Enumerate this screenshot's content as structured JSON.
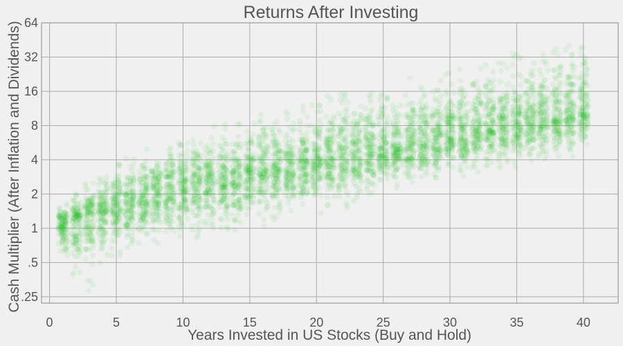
{
  "chart_data": {
    "type": "scatter",
    "title": "Returns After Investing",
    "xlabel": "Years Invested in US Stocks (Buy and Hold)",
    "ylabel": "Cash Multiplier (After Inflation and Dividends)",
    "xlim": [
      -0.6,
      42.6
    ],
    "ylim": [
      0.22,
      64
    ],
    "y_scale": "log2",
    "grid": true,
    "x_ticks": [
      0,
      5,
      10,
      15,
      20,
      25,
      30,
      35,
      40
    ],
    "x_tick_labels": [
      "0",
      "5",
      "10",
      "15",
      "20",
      "25",
      "30",
      "35",
      "40"
    ],
    "y_ticks": [
      0.25,
      0.5,
      1,
      2,
      4,
      8,
      16,
      32,
      64
    ],
    "y_tick_labels": [
      ".25",
      ".5",
      "1",
      "2",
      "4",
      "8",
      "16",
      "32",
      "64"
    ],
    "point_color": "#22c42a",
    "point_opacity": 0.08,
    "series": [
      {
        "x": [
          1,
          2,
          3,
          4,
          5,
          6,
          7,
          8,
          9,
          10,
          11,
          12,
          13,
          14,
          15,
          16,
          17,
          18,
          19,
          20,
          21,
          22,
          23,
          24,
          25,
          26,
          27,
          28,
          29,
          30,
          31,
          32,
          33,
          34,
          35,
          36,
          37,
          38,
          39,
          40
        ],
        "y_median": [
          1.1,
          1.2,
          1.3,
          1.4,
          1.5,
          1.6,
          1.75,
          1.9,
          2.0,
          2.2,
          2.3,
          2.5,
          2.6,
          2.8,
          3.0,
          3.1,
          3.3,
          3.5,
          3.6,
          3.8,
          4.0,
          4.2,
          4.4,
          4.6,
          4.8,
          5.0,
          5.3,
          5.6,
          5.9,
          6.3,
          6.6,
          7.0,
          7.4,
          7.8,
          8.2,
          8.6,
          9.0,
          9.5,
          10.0,
          10.5
        ],
        "y_min": [
          0.45,
          0.35,
          0.28,
          0.45,
          0.55,
          0.6,
          0.65,
          0.7,
          0.7,
          0.8,
          0.8,
          0.85,
          0.9,
          0.9,
          1.0,
          1.0,
          1.1,
          1.2,
          1.3,
          1.3,
          1.4,
          1.5,
          1.7,
          1.8,
          2.0,
          2.2,
          2.4,
          2.5,
          2.6,
          2.7,
          2.8,
          3.0,
          3.1,
          3.3,
          3.4,
          3.6,
          3.8,
          4.0,
          4.2,
          4.5
        ],
        "y_max": [
          1.7,
          2.1,
          2.5,
          3.2,
          4.0,
          4.5,
          5.0,
          5.5,
          6.5,
          7.0,
          7.5,
          8.0,
          8.5,
          9.0,
          9.5,
          10.0,
          11,
          12,
          13,
          14,
          15,
          16,
          17,
          18,
          19,
          20,
          21,
          22,
          23,
          24,
          26,
          28,
          30,
          32,
          35,
          38,
          40,
          42,
          44,
          48
        ]
      }
    ]
  }
}
